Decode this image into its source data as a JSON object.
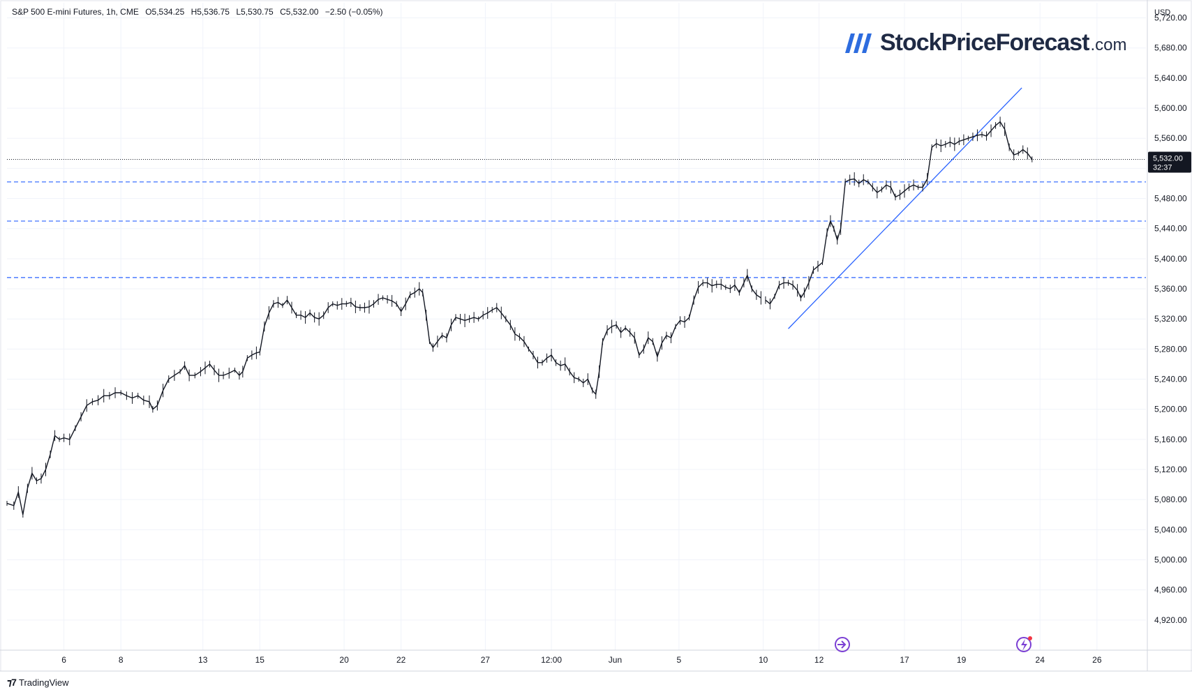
{
  "header": {
    "symbol": "S&P 500 E-mini Futures, 1h, CME",
    "open": "O5,534.25",
    "high": "H5,536.75",
    "low": "L5,530.75",
    "close": "C5,532.00",
    "change": "−2.50 (−0.05%)"
  },
  "brand": {
    "name": "StockPriceForecast",
    "tld": ".com",
    "mark_color": "#2d6cdf"
  },
  "footer": {
    "tradingview": "TradingView"
  },
  "currency": "USD",
  "chart_data": {
    "type": "line",
    "y_range": [
      4880,
      5740
    ],
    "y_ticks": [
      5720,
      5680,
      5640,
      5600,
      5560,
      5520,
      5480,
      5440,
      5400,
      5360,
      5320,
      5280,
      5240,
      5200,
      5160,
      5120,
      5080,
      5040,
      5000,
      4960,
      4920
    ],
    "y_tick_labels": [
      "5,720.00",
      "5,680.00",
      "5,640.00",
      "5,600.00",
      "5,560.00",
      "5,520.00",
      "5,480.00",
      "5,440.00",
      "5,400.00",
      "5,360.00",
      "5,320.00",
      "5,280.00",
      "5,240.00",
      "5,200.00",
      "5,160.00",
      "5,120.00",
      "5,080.00",
      "5,040.00",
      "5,000.00",
      "4,960.00",
      "4,920.00"
    ],
    "x_ticks": [
      {
        "label": "6",
        "t": 0.05
      },
      {
        "label": "8",
        "t": 0.1
      },
      {
        "label": "13",
        "t": 0.172
      },
      {
        "label": "15",
        "t": 0.222
      },
      {
        "label": "20",
        "t": 0.296
      },
      {
        "label": "22",
        "t": 0.346
      },
      {
        "label": "27",
        "t": 0.42
      },
      {
        "label": "12:00",
        "t": 0.478
      },
      {
        "label": "Jun",
        "t": 0.534
      },
      {
        "label": "5",
        "t": 0.59
      },
      {
        "label": "10",
        "t": 0.664
      },
      {
        "label": "12",
        "t": 0.713
      },
      {
        "label": "17",
        "t": 0.788
      },
      {
        "label": "19",
        "t": 0.838
      },
      {
        "label": "24",
        "t": 0.907
      },
      {
        "label": "26",
        "t": 0.957
      }
    ],
    "series": [
      {
        "points": [
          [
            0.0,
            5075
          ],
          [
            0.006,
            5072
          ],
          [
            0.01,
            5090
          ],
          [
            0.014,
            5060
          ],
          [
            0.018,
            5095
          ],
          [
            0.022,
            5115
          ],
          [
            0.026,
            5105
          ],
          [
            0.03,
            5108
          ],
          [
            0.034,
            5120
          ],
          [
            0.038,
            5140
          ],
          [
            0.042,
            5165
          ],
          [
            0.046,
            5160
          ],
          [
            0.05,
            5162
          ],
          [
            0.055,
            5160
          ],
          [
            0.06,
            5175
          ],
          [
            0.065,
            5190
          ],
          [
            0.07,
            5205
          ],
          [
            0.075,
            5210
          ],
          [
            0.08,
            5212
          ],
          [
            0.085,
            5218
          ],
          [
            0.09,
            5218
          ],
          [
            0.095,
            5222
          ],
          [
            0.1,
            5222
          ],
          [
            0.105,
            5218
          ],
          [
            0.11,
            5215
          ],
          [
            0.115,
            5218
          ],
          [
            0.12,
            5212
          ],
          [
            0.125,
            5210
          ],
          [
            0.128,
            5200
          ],
          [
            0.132,
            5205
          ],
          [
            0.137,
            5225
          ],
          [
            0.142,
            5240
          ],
          [
            0.147,
            5245
          ],
          [
            0.152,
            5250
          ],
          [
            0.156,
            5258
          ],
          [
            0.16,
            5245
          ],
          [
            0.165,
            5245
          ],
          [
            0.17,
            5250
          ],
          [
            0.174,
            5255
          ],
          [
            0.178,
            5260
          ],
          [
            0.182,
            5252
          ],
          [
            0.186,
            5245
          ],
          [
            0.19,
            5245
          ],
          [
            0.195,
            5248
          ],
          [
            0.2,
            5252
          ],
          [
            0.204,
            5245
          ],
          [
            0.207,
            5250
          ],
          [
            0.211,
            5268
          ],
          [
            0.215,
            5272
          ],
          [
            0.219,
            5275
          ],
          [
            0.222,
            5276
          ],
          [
            0.226,
            5310
          ],
          [
            0.23,
            5328
          ],
          [
            0.234,
            5340
          ],
          [
            0.238,
            5342
          ],
          [
            0.242,
            5338
          ],
          [
            0.246,
            5345
          ],
          [
            0.25,
            5335
          ],
          [
            0.254,
            5325
          ],
          [
            0.258,
            5325
          ],
          [
            0.262,
            5322
          ],
          [
            0.266,
            5328
          ],
          [
            0.27,
            5322
          ],
          [
            0.274,
            5320
          ],
          [
            0.278,
            5325
          ],
          [
            0.282,
            5335
          ],
          [
            0.286,
            5340
          ],
          [
            0.29,
            5338
          ],
          [
            0.294,
            5340
          ],
          [
            0.298,
            5340
          ],
          [
            0.302,
            5342
          ],
          [
            0.306,
            5336
          ],
          [
            0.31,
            5335
          ],
          [
            0.314,
            5335
          ],
          [
            0.318,
            5336
          ],
          [
            0.322,
            5340
          ],
          [
            0.326,
            5346
          ],
          [
            0.33,
            5348
          ],
          [
            0.334,
            5346
          ],
          [
            0.338,
            5344
          ],
          [
            0.342,
            5340
          ],
          [
            0.346,
            5330
          ],
          [
            0.35,
            5340
          ],
          [
            0.354,
            5352
          ],
          [
            0.358,
            5355
          ],
          [
            0.362,
            5360
          ],
          [
            0.365,
            5355
          ],
          [
            0.368,
            5325
          ],
          [
            0.371,
            5290
          ],
          [
            0.374,
            5282
          ],
          [
            0.378,
            5290
          ],
          [
            0.382,
            5298
          ],
          [
            0.386,
            5295
          ],
          [
            0.39,
            5312
          ],
          [
            0.394,
            5322
          ],
          [
            0.398,
            5320
          ],
          [
            0.402,
            5318
          ],
          [
            0.406,
            5320
          ],
          [
            0.41,
            5322
          ],
          [
            0.414,
            5320
          ],
          [
            0.418,
            5325
          ],
          [
            0.422,
            5328
          ],
          [
            0.426,
            5332
          ],
          [
            0.43,
            5335
          ],
          [
            0.434,
            5328
          ],
          [
            0.438,
            5320
          ],
          [
            0.442,
            5312
          ],
          [
            0.446,
            5300
          ],
          [
            0.45,
            5296
          ],
          [
            0.454,
            5290
          ],
          [
            0.458,
            5280
          ],
          [
            0.462,
            5272
          ],
          [
            0.466,
            5262
          ],
          [
            0.47,
            5262
          ],
          [
            0.474,
            5268
          ],
          [
            0.478,
            5272
          ],
          [
            0.482,
            5262
          ],
          [
            0.486,
            5258
          ],
          [
            0.49,
            5260
          ],
          [
            0.494,
            5250
          ],
          [
            0.498,
            5242
          ],
          [
            0.502,
            5240
          ],
          [
            0.506,
            5235
          ],
          [
            0.51,
            5240
          ],
          [
            0.514,
            5225
          ],
          [
            0.517,
            5220
          ],
          [
            0.52,
            5250
          ],
          [
            0.523,
            5290
          ],
          [
            0.527,
            5305
          ],
          [
            0.531,
            5310
          ],
          [
            0.535,
            5312
          ],
          [
            0.539,
            5302
          ],
          [
            0.543,
            5308
          ],
          [
            0.547,
            5302
          ],
          [
            0.551,
            5295
          ],
          [
            0.555,
            5272
          ],
          [
            0.559,
            5280
          ],
          [
            0.563,
            5295
          ],
          [
            0.567,
            5290
          ],
          [
            0.571,
            5270
          ],
          [
            0.575,
            5288
          ],
          [
            0.579,
            5298
          ],
          [
            0.583,
            5295
          ],
          [
            0.587,
            5310
          ],
          [
            0.591,
            5318
          ],
          [
            0.595,
            5316
          ],
          [
            0.599,
            5322
          ],
          [
            0.603,
            5345
          ],
          [
            0.607,
            5362
          ],
          [
            0.611,
            5368
          ],
          [
            0.615,
            5368
          ],
          [
            0.619,
            5364
          ],
          [
            0.623,
            5366
          ],
          [
            0.627,
            5366
          ],
          [
            0.631,
            5362
          ],
          [
            0.635,
            5360
          ],
          [
            0.639,
            5365
          ],
          [
            0.643,
            5355
          ],
          [
            0.647,
            5368
          ],
          [
            0.65,
            5378
          ],
          [
            0.654,
            5360
          ],
          [
            0.658,
            5352
          ],
          [
            0.662,
            5348
          ],
          [
            0.666,
            5345
          ],
          [
            0.67,
            5340
          ],
          [
            0.674,
            5350
          ],
          [
            0.678,
            5365
          ],
          [
            0.682,
            5368
          ],
          [
            0.686,
            5368
          ],
          [
            0.69,
            5365
          ],
          [
            0.694,
            5358
          ],
          [
            0.697,
            5348
          ],
          [
            0.7,
            5355
          ],
          [
            0.704,
            5368
          ],
          [
            0.708,
            5385
          ],
          [
            0.712,
            5390
          ],
          [
            0.716,
            5395
          ],
          [
            0.72,
            5435
          ],
          [
            0.723,
            5450
          ],
          [
            0.726,
            5440
          ],
          [
            0.729,
            5425
          ],
          [
            0.732,
            5440
          ],
          [
            0.736,
            5502
          ],
          [
            0.74,
            5505
          ],
          [
            0.744,
            5506
          ],
          [
            0.748,
            5500
          ],
          [
            0.752,
            5505
          ],
          [
            0.756,
            5502
          ],
          [
            0.76,
            5495
          ],
          [
            0.764,
            5488
          ],
          [
            0.768,
            5492
          ],
          [
            0.772,
            5498
          ],
          [
            0.776,
            5495
          ],
          [
            0.78,
            5482
          ],
          [
            0.784,
            5485
          ],
          [
            0.788,
            5490
          ],
          [
            0.792,
            5495
          ],
          [
            0.796,
            5498
          ],
          [
            0.8,
            5495
          ],
          [
            0.804,
            5495
          ],
          [
            0.808,
            5506
          ],
          [
            0.812,
            5548
          ],
          [
            0.816,
            5553
          ],
          [
            0.82,
            5550
          ],
          [
            0.824,
            5552
          ],
          [
            0.828,
            5555
          ],
          [
            0.832,
            5552
          ],
          [
            0.836,
            5556
          ],
          [
            0.84,
            5558
          ],
          [
            0.844,
            5560
          ],
          [
            0.848,
            5562
          ],
          [
            0.852,
            5564
          ],
          [
            0.856,
            5565
          ],
          [
            0.86,
            5563
          ],
          [
            0.864,
            5570
          ],
          [
            0.868,
            5577
          ],
          [
            0.872,
            5582
          ],
          [
            0.876,
            5572
          ],
          [
            0.88,
            5548
          ],
          [
            0.884,
            5538
          ],
          [
            0.888,
            5540
          ],
          [
            0.892,
            5545
          ],
          [
            0.896,
            5540
          ],
          [
            0.9,
            5532
          ]
        ]
      }
    ],
    "horizontal_levels": [
      5502,
      5450,
      5375
    ],
    "last_price": 5532,
    "last_price_label": "5,532.00",
    "countdown": "32:37",
    "trendline": [
      [
        0.686,
        5307
      ],
      [
        0.891,
        5627
      ]
    ]
  }
}
